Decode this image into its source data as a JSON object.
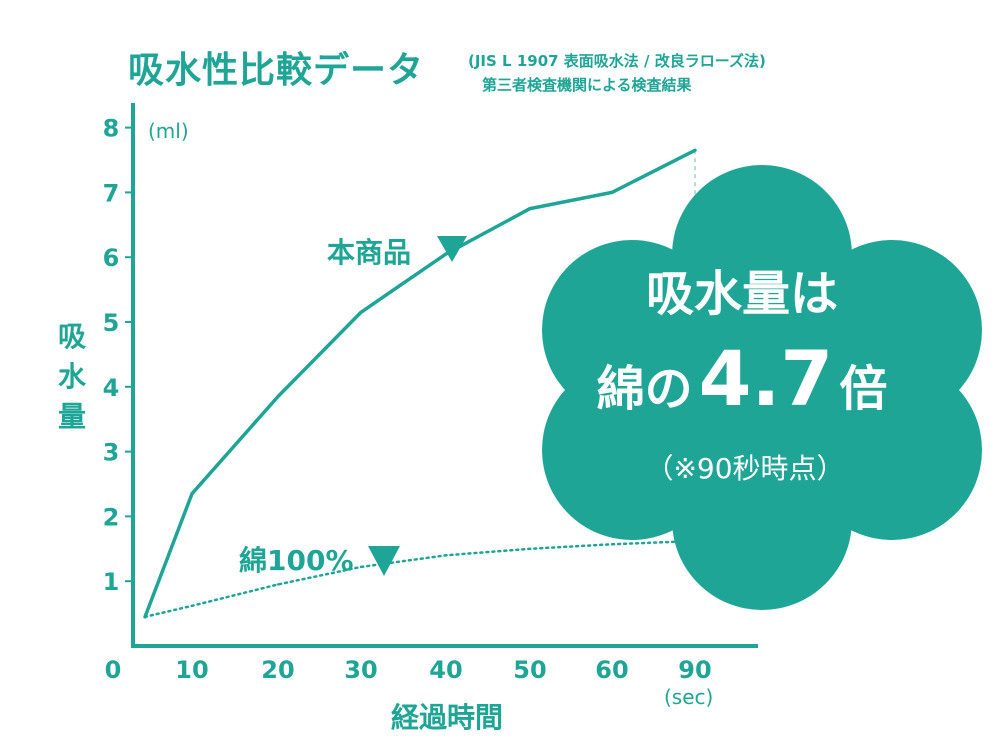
{
  "chart_data": {
    "type": "line",
    "title": "吸水性比較データ",
    "subtitle_line1": "(JIS L 1907 表面吸水法 / 改良ラローズ法)",
    "subtitle_line2": "第三者検査機関による検査結果",
    "xlabel": "経過時間",
    "x_unit": "(sec)",
    "ylabel": "吸水量",
    "y_unit": "(ml)",
    "x_ticks": [
      "0",
      "10",
      "20",
      "30",
      "40",
      "50",
      "60",
      "90"
    ],
    "y_ticks": [
      "1",
      "2",
      "3",
      "4",
      "5",
      "6",
      "7",
      "8"
    ],
    "ylim": [
      0,
      8
    ],
    "series": [
      {
        "name": "本商品",
        "style": "solid",
        "color": "#1fa596",
        "points": [
          [
            5,
            0.45
          ],
          [
            10,
            2.35
          ],
          [
            20,
            3.85
          ],
          [
            30,
            5.15
          ],
          [
            40,
            6.05
          ],
          [
            50,
            6.75
          ],
          [
            60,
            7.0
          ],
          [
            90,
            7.65
          ]
        ]
      },
      {
        "name": "綿100%",
        "style": "dotted",
        "color": "#1fa596",
        "points": [
          [
            5,
            0.45
          ],
          [
            10,
            0.62
          ],
          [
            20,
            0.95
          ],
          [
            30,
            1.22
          ],
          [
            40,
            1.4
          ],
          [
            50,
            1.5
          ],
          [
            60,
            1.57
          ],
          [
            90,
            1.62
          ]
        ]
      }
    ],
    "callout": {
      "line1": "吸水量は",
      "line2_prefix": "綿の",
      "line2_value": "4.7",
      "line2_suffix": "倍",
      "note": "（※90秒時点）"
    },
    "grid": false,
    "colors": {
      "accent": "#1fa596",
      "marker": "#1fa596"
    }
  }
}
